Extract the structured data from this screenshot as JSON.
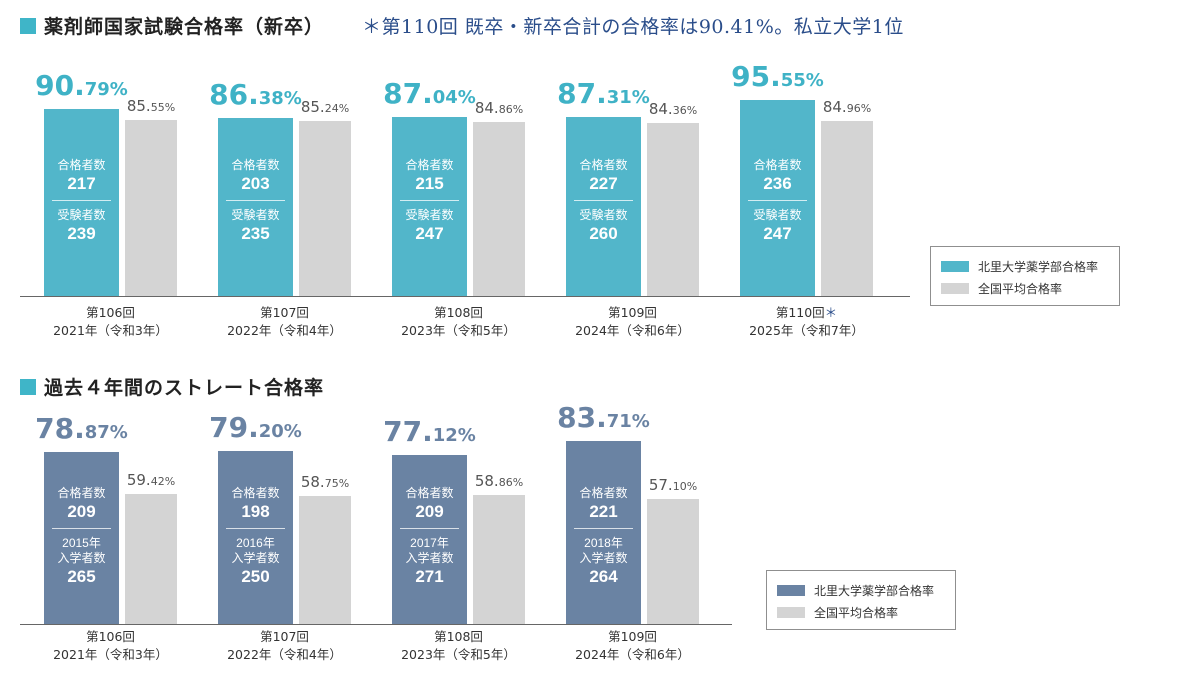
{
  "section1": {
    "title": "薬剤師国家試験合格率（新卒）",
    "note": "＊第110回 既卒・新卒合計の合格率は90.41%。私立大学1位"
  },
  "section2": {
    "title": "過去４年間のストレート合格率"
  },
  "chart_data": [
    {
      "type": "bar",
      "title": "薬剤師国家試験合格率（新卒）",
      "categories": [
        "第106回 2021年（令和3年）",
        "第107回 2022年（令和4年）",
        "第108回 2023年（令和5年）",
        "第109回 2024年（令和6年）",
        "第110回＊ 2025年（令和7年）"
      ],
      "series": [
        {
          "name": "北里大学薬学部合格率",
          "values": [
            90.79,
            86.38,
            87.04,
            87.31,
            95.55
          ],
          "color": "#52b6ca"
        },
        {
          "name": "全国平均合格率",
          "values": [
            85.55,
            85.24,
            84.86,
            84.36,
            84.96
          ],
          "color": "#d4d4d4"
        }
      ],
      "ylim": [
        0,
        100
      ],
      "legend": "right",
      "grid": false,
      "groups": [
        {
          "session": "第106回",
          "year": "2021年（令和3年）",
          "kitasato": {
            "int": "90.",
            "dec": "79%"
          },
          "avg": {
            "int": "85.",
            "dec": "55%"
          },
          "label1": "合格者数",
          "num1": "217",
          "label2": "受験者数",
          "num2": "239"
        },
        {
          "session": "第107回",
          "year": "2022年（令和4年）",
          "kitasato": {
            "int": "86.",
            "dec": "38%"
          },
          "avg": {
            "int": "85.",
            "dec": "24%"
          },
          "label1": "合格者数",
          "num1": "203",
          "label2": "受験者数",
          "num2": "235"
        },
        {
          "session": "第108回",
          "year": "2023年（令和5年）",
          "kitasato": {
            "int": "87.",
            "dec": "04%"
          },
          "avg": {
            "int": "84.",
            "dec": "86%"
          },
          "label1": "合格者数",
          "num1": "215",
          "label2": "受験者数",
          "num2": "247"
        },
        {
          "session": "第109回",
          "year": "2024年（令和6年）",
          "kitasato": {
            "int": "87.",
            "dec": "31%"
          },
          "avg": {
            "int": "84.",
            "dec": "36%"
          },
          "label1": "合格者数",
          "num1": "227",
          "label2": "受験者数",
          "num2": "260"
        },
        {
          "session": "第110回",
          "session_mark": "＊",
          "year": "2025年（令和7年）",
          "kitasato": {
            "int": "95.",
            "dec": "55%"
          },
          "avg": {
            "int": "84.",
            "dec": "96%"
          },
          "label1": "合格者数",
          "num1": "236",
          "label2": "受験者数",
          "num2": "247"
        }
      ],
      "legend_items": [
        "北里大学薬学部合格率",
        "全国平均合格率"
      ]
    },
    {
      "type": "bar",
      "title": "過去４年間のストレート合格率",
      "categories": [
        "第106回 2021年（令和3年）",
        "第107回 2022年（令和4年）",
        "第108回 2023年（令和5年）",
        "第109回 2024年（令和6年）"
      ],
      "series": [
        {
          "name": "北里大学薬学部合格率",
          "values": [
            78.87,
            79.2,
            77.12,
            83.71
          ],
          "color": "#6a83a3"
        },
        {
          "name": "全国平均合格率",
          "values": [
            59.42,
            58.75,
            58.86,
            57.1
          ],
          "color": "#d4d4d4"
        }
      ],
      "ylim": [
        0,
        100
      ],
      "legend": "right",
      "grid": false,
      "groups": [
        {
          "session": "第106回",
          "year": "2021年（令和3年）",
          "kitasato": {
            "int": "78.",
            "dec": "87%"
          },
          "avg": {
            "int": "59.",
            "dec": "42%"
          },
          "label1": "合格者数",
          "num1": "209",
          "label2a": "2015年",
          "label2b": "入学者数",
          "num2": "265"
        },
        {
          "session": "第107回",
          "year": "2022年（令和4年）",
          "kitasato": {
            "int": "79.",
            "dec": "20%"
          },
          "avg": {
            "int": "58.",
            "dec": "75%"
          },
          "label1": "合格者数",
          "num1": "198",
          "label2a": "2016年",
          "label2b": "入学者数",
          "num2": "250"
        },
        {
          "session": "第108回",
          "year": "2023年（令和5年）",
          "kitasato": {
            "int": "77.",
            "dec": "12%"
          },
          "avg": {
            "int": "58.",
            "dec": "86%"
          },
          "label1": "合格者数",
          "num1": "209",
          "label2a": "2017年",
          "label2b": "入学者数",
          "num2": "271"
        },
        {
          "session": "第109回",
          "year": "2024年（令和6年）",
          "kitasato": {
            "int": "83.",
            "dec": "71%"
          },
          "avg": {
            "int": "57.",
            "dec": "10%"
          },
          "label1": "合格者数",
          "num1": "221",
          "label2a": "2018年",
          "label2b": "入学者数",
          "num2": "264"
        }
      ],
      "legend_items": [
        "北里大学薬学部合格率",
        "全国平均合格率"
      ]
    }
  ]
}
